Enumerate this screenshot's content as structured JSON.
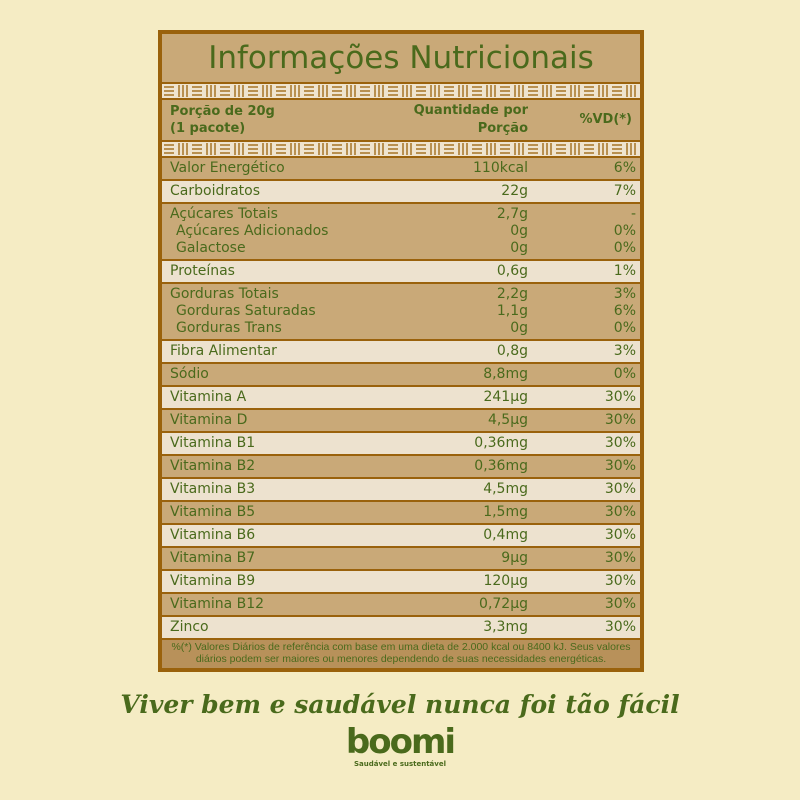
{
  "title": "Informações Nutricionais",
  "header": {
    "portion_line1": "Porção de 20g",
    "portion_line2": "(1 pacote)",
    "qty_line1": "Quantidade por",
    "qty_line2": "Porção",
    "vd": "%VD(*)"
  },
  "rows": [
    {
      "lines": [
        {
          "name": "Valor Energético",
          "qty": "110kcal",
          "vd": "6%"
        }
      ]
    },
    {
      "lines": [
        {
          "name": "Carboidratos",
          "qty": "22g",
          "vd": "7%"
        }
      ]
    },
    {
      "lines": [
        {
          "name": "Açúcares Totais",
          "qty": "2,7g",
          "vd": "-"
        },
        {
          "name": "Açúcares Adicionados",
          "qty": "0g",
          "vd": "0%"
        },
        {
          "name": "Galactose",
          "qty": "0g",
          "vd": "0%"
        }
      ]
    },
    {
      "lines": [
        {
          "name": "Proteínas",
          "qty": "0,6g",
          "vd": "1%"
        }
      ]
    },
    {
      "lines": [
        {
          "name": "Gorduras Totais",
          "qty": "2,2g",
          "vd": "3%"
        },
        {
          "name": "Gorduras Saturadas",
          "qty": "1,1g",
          "vd": "6%"
        },
        {
          "name": "Gorduras Trans",
          "qty": "0g",
          "vd": "0%"
        }
      ]
    },
    {
      "lines": [
        {
          "name": "Fibra Alimentar",
          "qty": "0,8g",
          "vd": "3%"
        }
      ]
    },
    {
      "lines": [
        {
          "name": "Sódio",
          "qty": "8,8mg",
          "vd": "0%"
        }
      ]
    },
    {
      "lines": [
        {
          "name": "Vitamina A",
          "qty": "241µg",
          "vd": "30%"
        }
      ]
    },
    {
      "lines": [
        {
          "name": "Vitamina D",
          "qty": "4,5µg",
          "vd": "30%"
        }
      ]
    },
    {
      "lines": [
        {
          "name": "Vitamina B1",
          "qty": "0,36mg",
          "vd": "30%"
        }
      ]
    },
    {
      "lines": [
        {
          "name": "Vitamina B2",
          "qty": "0,36mg",
          "vd": "30%"
        }
      ]
    },
    {
      "lines": [
        {
          "name": "Vitamina B3",
          "qty": "4,5mg",
          "vd": "30%"
        }
      ]
    },
    {
      "lines": [
        {
          "name": "Vitamina B5",
          "qty": "1,5mg",
          "vd": "30%"
        }
      ]
    },
    {
      "lines": [
        {
          "name": "Vitamina B6",
          "qty": "0,4mg",
          "vd": "30%"
        }
      ]
    },
    {
      "lines": [
        {
          "name": "Vitamina B7",
          "qty": "9µg",
          "vd": "30%"
        }
      ]
    },
    {
      "lines": [
        {
          "name": "Vitamina B9",
          "qty": "120µg",
          "vd": "30%"
        }
      ]
    },
    {
      "lines": [
        {
          "name": "Vitamina B12",
          "qty": "0,72µg",
          "vd": "30%"
        }
      ]
    },
    {
      "lines": [
        {
          "name": "Zinco",
          "qty": "3,3mg",
          "vd": "30%"
        }
      ]
    }
  ],
  "footnote": "%(*) Valores Diários de referência com base em uma dieta de 2.000 kcal ou 8400 kJ. Seus valores diários podem ser maiores ou menores dependendo de suas necessidades energéticas.",
  "slogan": "Viver bem e saudável nunca foi tão fácil",
  "logo": {
    "wordmark": "boomi",
    "tagline": "Saudável e sustentável"
  },
  "colors": {
    "green": "#4a6a1c",
    "border": "#9a620c",
    "tan": "#c9a978",
    "light": "#ede2cf",
    "background": "#f5ecc4"
  }
}
